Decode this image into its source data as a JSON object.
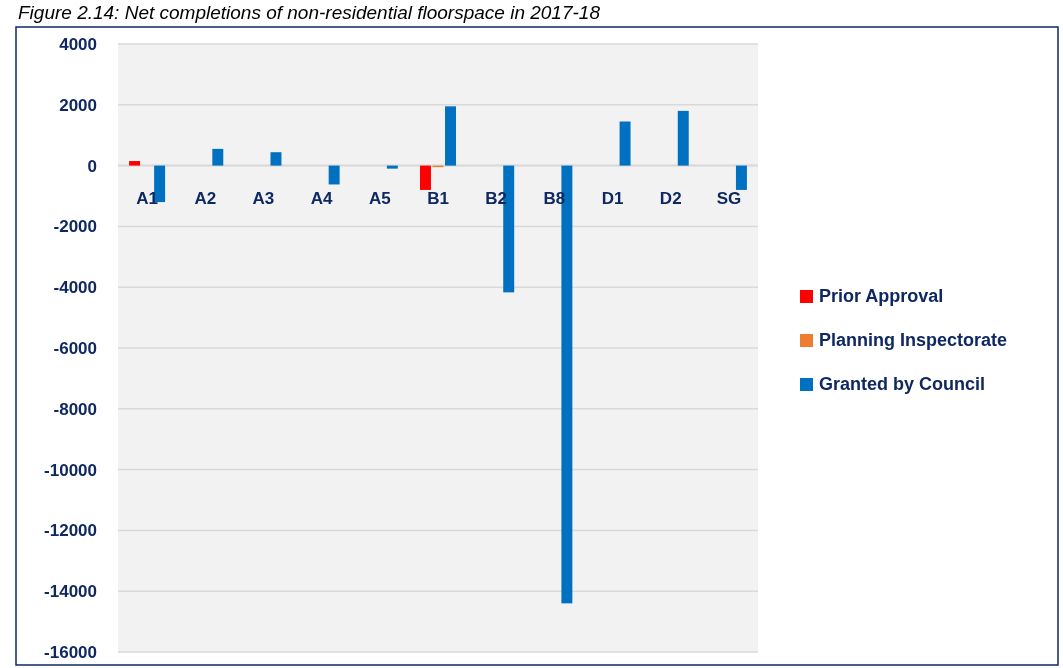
{
  "chart_data": {
    "type": "bar",
    "title": "Figure 2.14: Net completions of non-residential floorspace in 2017-18",
    "categories": [
      "A1",
      "A2",
      "A3",
      "A4",
      "A5",
      "B1",
      "B2",
      "B8",
      "D1",
      "D2",
      "SG"
    ],
    "series": [
      {
        "name": "Prior Approval",
        "color": "#ff0000",
        "values": [
          150,
          null,
          null,
          null,
          null,
          -800,
          null,
          null,
          null,
          null,
          null
        ]
      },
      {
        "name": "Planning Inspectorate",
        "color": "#ed7d31",
        "values": [
          null,
          null,
          null,
          null,
          null,
          -50,
          null,
          null,
          null,
          null,
          null
        ]
      },
      {
        "name": "Granted by Council",
        "color": "#0070c0",
        "values": [
          -1200,
          550,
          440,
          -620,
          -100,
          1950,
          -4170,
          -14400,
          1450,
          1800,
          -800
        ]
      }
    ],
    "ylim": [
      -16000,
      4000
    ],
    "yticks": [
      4000,
      2000,
      0,
      -2000,
      -4000,
      -6000,
      -8000,
      -10000,
      -12000,
      -14000,
      -16000
    ],
    "grid": "y",
    "legend": "right"
  }
}
